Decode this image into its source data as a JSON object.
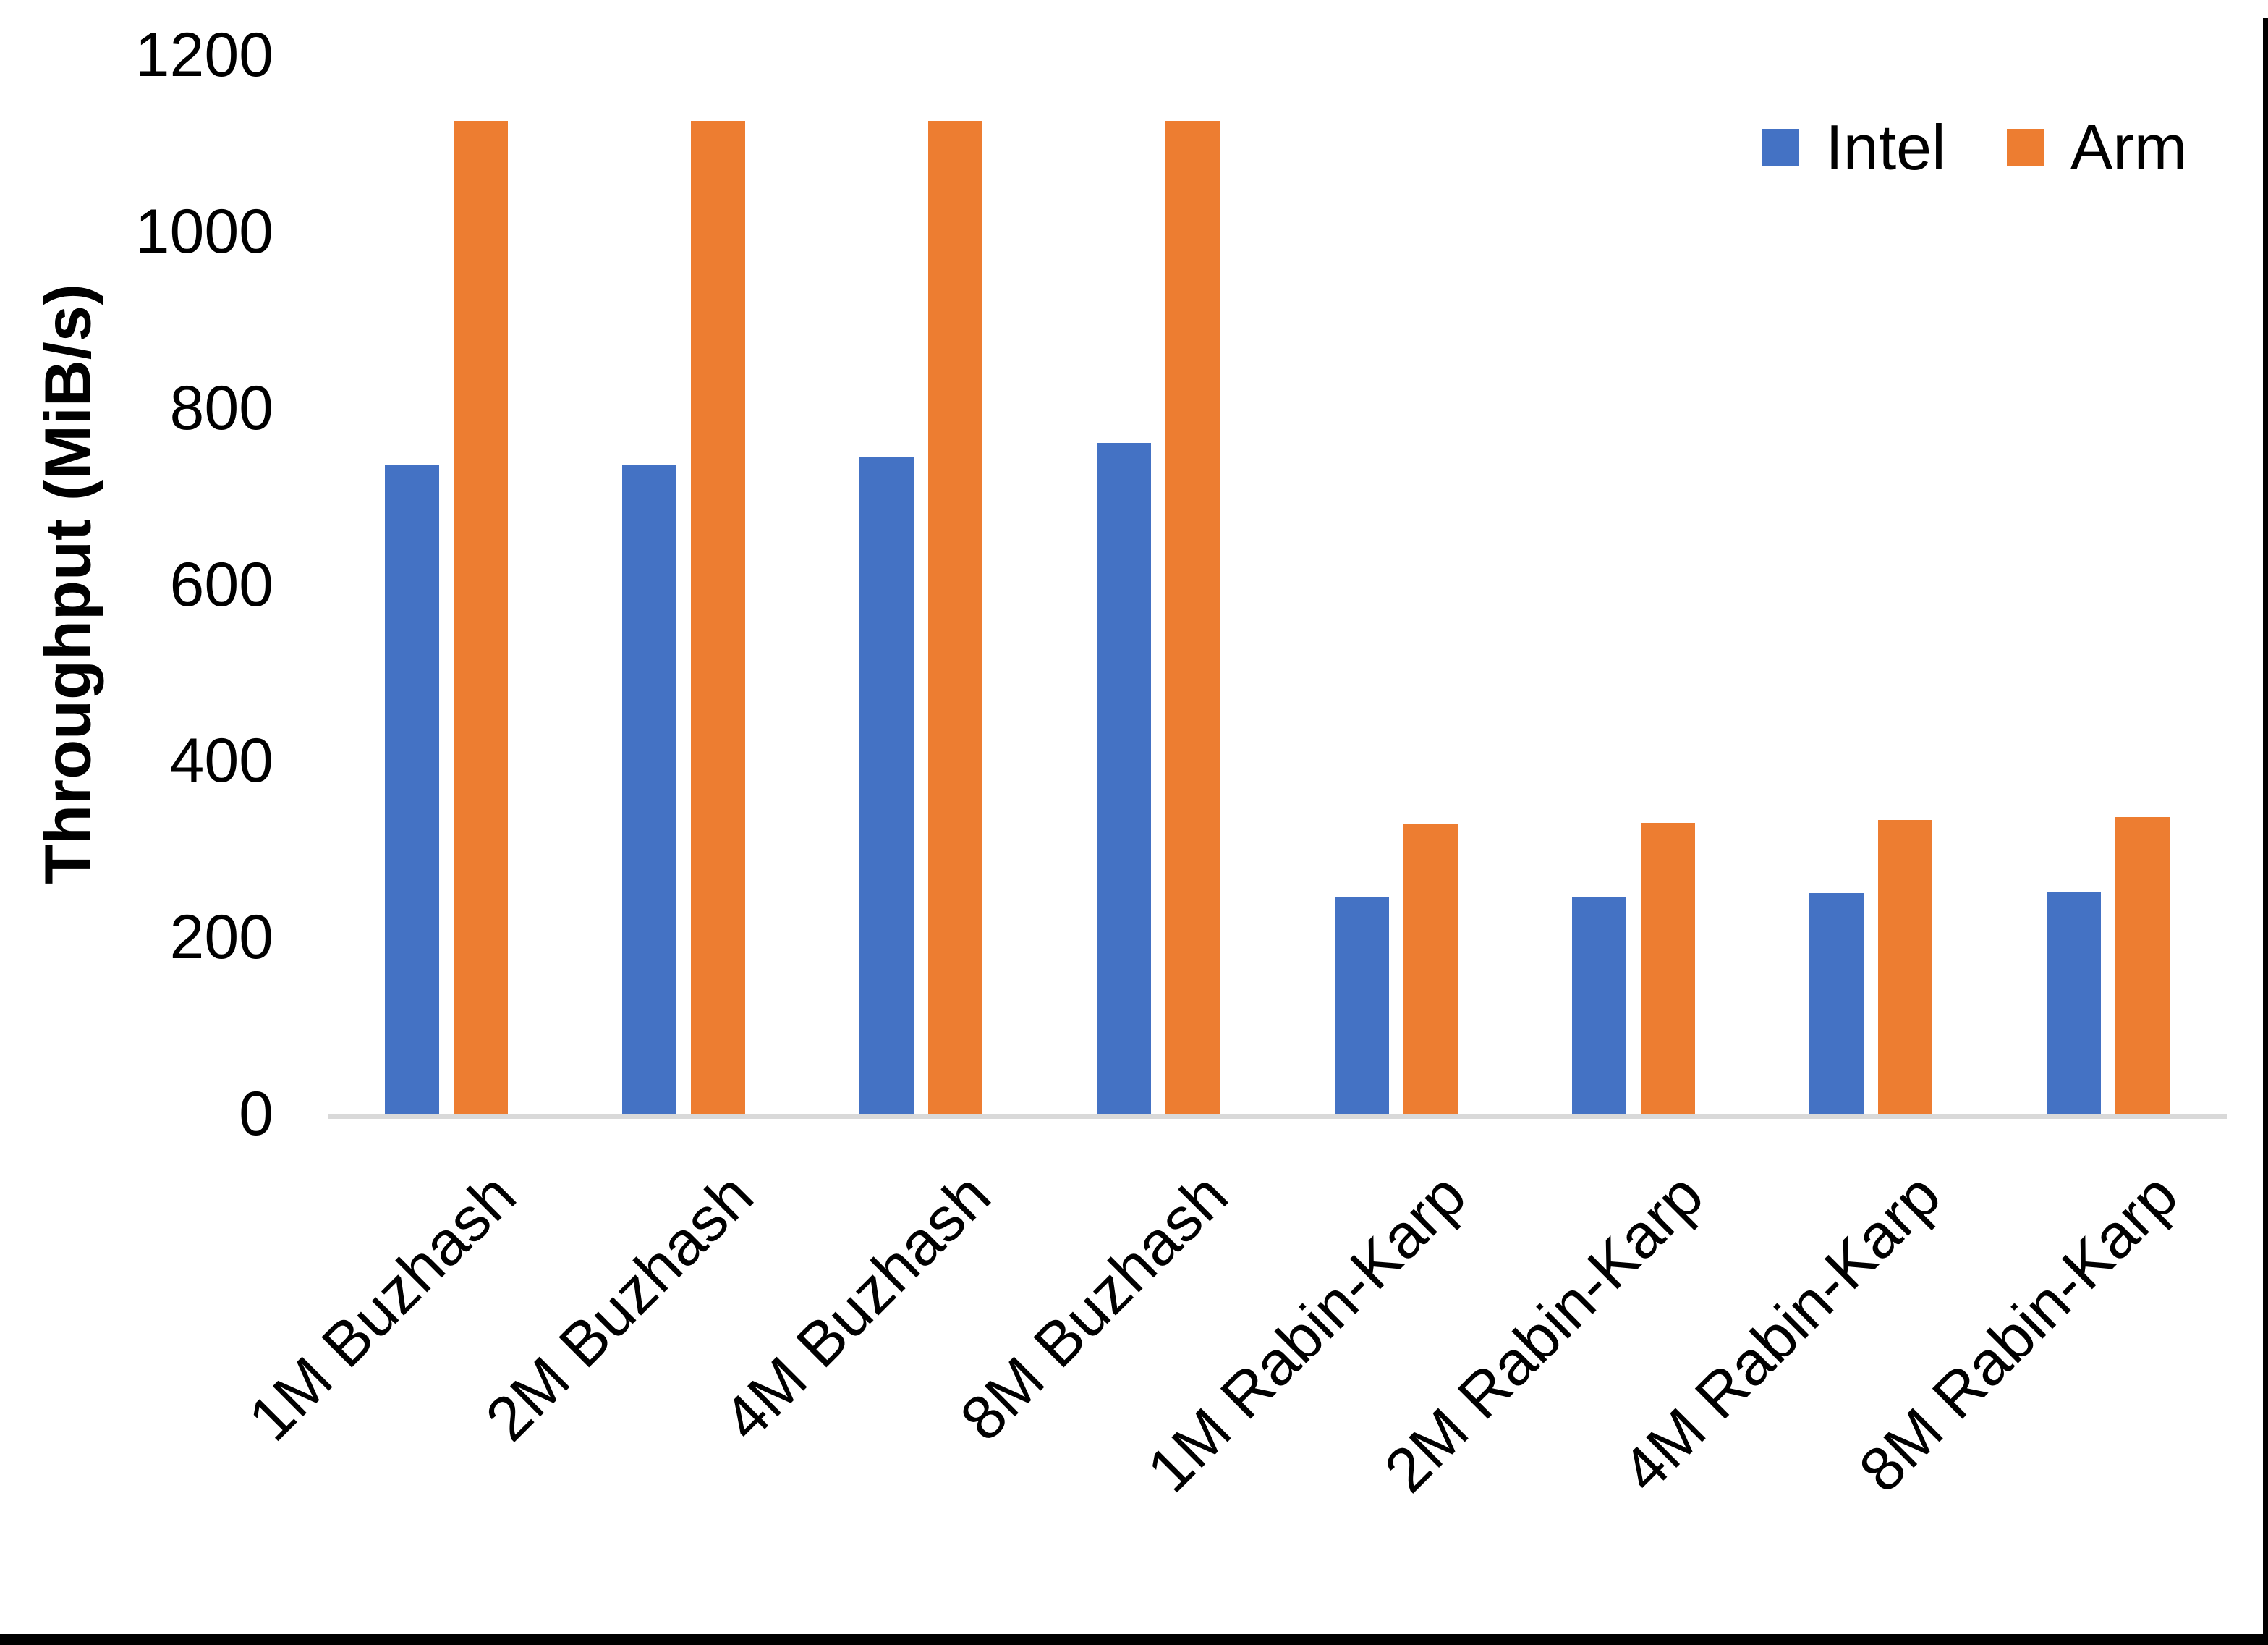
{
  "chart_data": {
    "type": "bar",
    "title": "",
    "ylabel": "Throughput (MiB/s)",
    "ylim": [
      0,
      1200
    ],
    "yticks": [
      0,
      200,
      400,
      600,
      800,
      1000,
      1200
    ],
    "grid": false,
    "legend_position": "top-right",
    "categories": [
      "1M Buzhash",
      "2M Buzhash",
      "4M Buzhash",
      "8M Buzhash",
      "1M Rabin-Karp",
      "2M Rabin-Karp",
      "4M Rabin-Karp",
      "8M Rabin-Karp"
    ],
    "series": [
      {
        "name": "Intel",
        "color": "#4472C4",
        "values": [
          736,
          735,
          744,
          760,
          246,
          246,
          250,
          251
        ]
      },
      {
        "name": "Arm",
        "color": "#ED7D31",
        "values": [
          1125,
          1125,
          1125,
          1125,
          328,
          330,
          333,
          336
        ]
      }
    ],
    "axis_line_color": "#D9D9D9",
    "text_color": "#000000"
  }
}
